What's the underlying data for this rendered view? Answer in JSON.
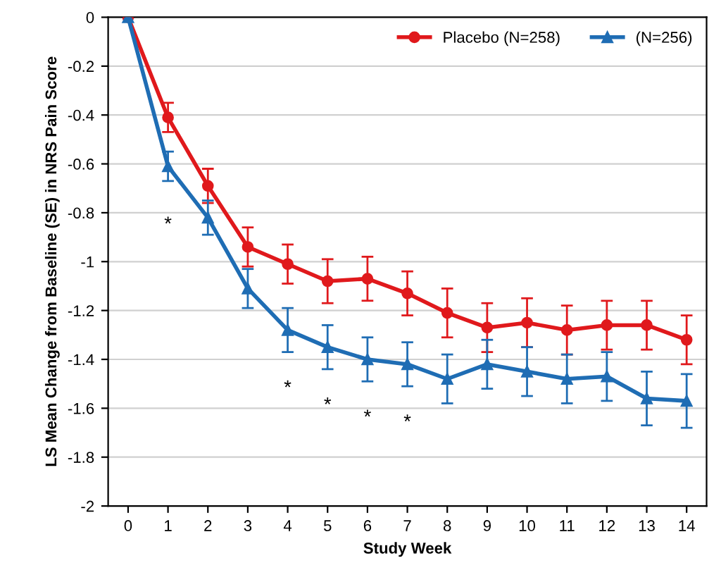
{
  "chart_data": {
    "type": "line",
    "xlabel": "Study Week",
    "ylabel": "LS Mean Change from Baseline (SE) in NRS Pain Score",
    "x": [
      0,
      1,
      2,
      3,
      4,
      5,
      6,
      7,
      8,
      9,
      10,
      11,
      12,
      13,
      14
    ],
    "series": [
      {
        "name": "Placebo (N=258)",
        "color": "#e0191c",
        "marker": "circle",
        "values": [
          0,
          -0.41,
          -0.69,
          -0.94,
          -1.01,
          -1.08,
          -1.07,
          -1.13,
          -1.21,
          -1.27,
          -1.25,
          -1.28,
          -1.26,
          -1.26,
          -1.32
        ],
        "errors": [
          null,
          0.06,
          0.07,
          0.08,
          0.08,
          0.09,
          0.09,
          0.09,
          0.1,
          0.1,
          0.1,
          0.1,
          0.1,
          0.1,
          0.1
        ]
      },
      {
        "name": "(N=256)",
        "color": "#1f6db4",
        "marker": "triangle",
        "values": [
          0,
          -0.61,
          -0.82,
          -1.11,
          -1.28,
          -1.35,
          -1.4,
          -1.42,
          -1.48,
          -1.42,
          -1.45,
          -1.48,
          -1.47,
          -1.56,
          -1.57
        ],
        "errors": [
          null,
          0.06,
          0.07,
          0.08,
          0.09,
          0.09,
          0.09,
          0.09,
          0.1,
          0.1,
          0.1,
          0.1,
          0.1,
          0.11,
          0.11
        ],
        "value_labels": [
          null,
          "*",
          null,
          null,
          "*",
          "*",
          "*",
          "*",
          null,
          null,
          null,
          null,
          null,
          null,
          null
        ]
      }
    ],
    "xlim": [
      -0.5,
      14.5
    ],
    "xticks": [
      0,
      1,
      2,
      3,
      4,
      5,
      6,
      7,
      8,
      9,
      10,
      11,
      12,
      13,
      14
    ],
    "ylim": [
      -2,
      0
    ],
    "yticks": [
      -2,
      -1.8,
      -1.6,
      -1.4,
      -1.2,
      -1,
      -0.8,
      -0.6,
      -0.4,
      -0.2,
      0
    ],
    "grid": "y",
    "legend": "top right"
  }
}
